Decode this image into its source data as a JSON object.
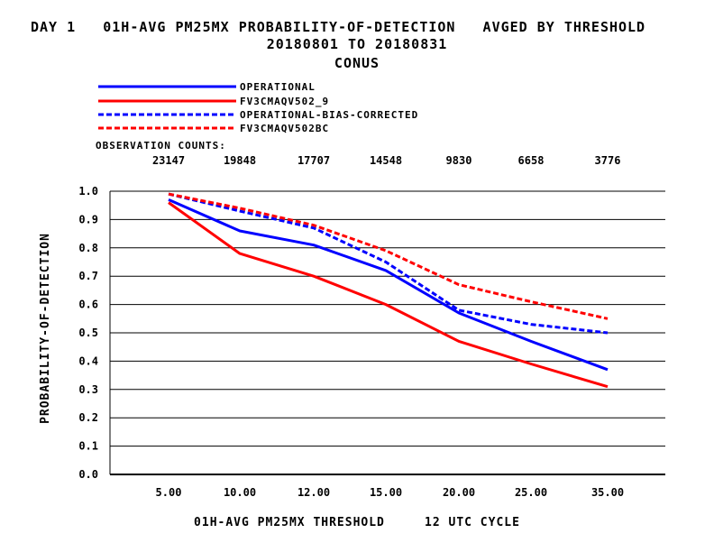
{
  "header": {
    "title_line1": "DAY 1   01H-AVG PM25MX PROBABILITY-OF-DETECTION   AVGED BY THRESHOLD",
    "title_line2": "20180801 TO 20180831",
    "title_line3": "CONUS"
  },
  "counts_label": "OBSERVATION COUNTS:",
  "chart_data": {
    "type": "line",
    "title": "DAY 1   01H-AVG PM25MX PROBABILITY-OF-DETECTION   AVGED BY THRESHOLD",
    "subtitle": "20180801 TO 20180831 CONUS",
    "xlabel": "01H-AVG PM25MX THRESHOLD     12 UTC CYCLE",
    "ylabel": "PROBABILITY-OF-DETECTION",
    "categories": [
      "5.00",
      "10.00",
      "12.00",
      "15.00",
      "20.00",
      "25.00",
      "35.00"
    ],
    "counts": [
      "23147",
      "19848",
      "17707",
      "14548",
      "9830",
      "6658",
      "3776"
    ],
    "yticks": [
      "0.0",
      "0.1",
      "0.2",
      "0.3",
      "0.4",
      "0.5",
      "0.6",
      "0.7",
      "0.8",
      "0.9",
      "1.0"
    ],
    "ylim": [
      0,
      1.0
    ],
    "grid": "horizontal",
    "legend_position": "top-left",
    "series": [
      {
        "name": "OPERATIONAL",
        "color": "#0000ff",
        "dash": "solid",
        "values": [
          0.97,
          0.86,
          0.81,
          0.72,
          0.57,
          0.47,
          0.37
        ]
      },
      {
        "name": "FV3CMAQV502_9",
        "color": "#ff0000",
        "dash": "solid",
        "values": [
          0.96,
          0.78,
          0.7,
          0.6,
          0.47,
          0.39,
          0.31
        ]
      },
      {
        "name": "OPERATIONAL-BIAS-CORRECTED",
        "color": "#0000ff",
        "dash": "dashed",
        "values": [
          0.99,
          0.93,
          0.87,
          0.75,
          0.58,
          0.53,
          0.5
        ]
      },
      {
        "name": "FV3CMAQV502BC",
        "color": "#ff0000",
        "dash": "dashed",
        "values": [
          0.99,
          0.94,
          0.88,
          0.79,
          0.67,
          0.61,
          0.55
        ]
      }
    ]
  }
}
